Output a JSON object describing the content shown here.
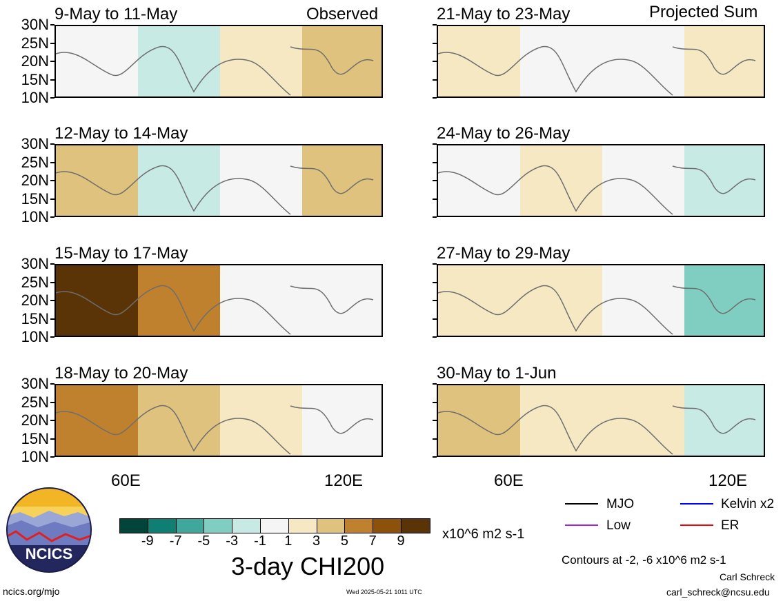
{
  "header": {
    "observed_label": "Observed",
    "projected_label": "Projected Sum"
  },
  "panels": [
    {
      "title": "9-May to 11-May",
      "field": [
        -1,
        -3,
        1,
        3
      ]
    },
    {
      "title": "12-May to 14-May",
      "field": [
        3,
        -3,
        -1,
        3
      ]
    },
    {
      "title": "15-May to 17-May",
      "field": [
        9,
        5,
        -1,
        -1
      ]
    },
    {
      "title": "18-May to 20-May",
      "field": [
        5,
        3,
        1,
        -1
      ]
    },
    {
      "title": "21-May to 23-May",
      "field": [
        1,
        -1,
        -1,
        1
      ]
    },
    {
      "title": "24-May to 26-May",
      "field": [
        -1,
        1,
        -1,
        -3
      ]
    },
    {
      "title": "27-May to 29-May",
      "field": [
        1,
        1,
        -1,
        -5
      ]
    },
    {
      "title": "30-May to 1-Jun",
      "field": [
        3,
        1,
        1,
        -3
      ]
    }
  ],
  "lat_labels": [
    "30N",
    "25N",
    "20N",
    "15N",
    "10N"
  ],
  "lon_labels": [
    "60E",
    "120E"
  ],
  "colorbar": {
    "colors": [
      "#01453a",
      "#0f7f74",
      "#3fa79c",
      "#80cdc1",
      "#c7eae5",
      "#f5f5f5",
      "#f6e8c3",
      "#dfc27d",
      "#bf812d",
      "#8c510a",
      "#5a3307"
    ],
    "labels": [
      "-9",
      "-7",
      "-5",
      "-3",
      "-1",
      "1",
      "3",
      "5",
      "7",
      "9"
    ],
    "units": "x10^6 m2 s-1",
    "title": "3-day CHI200"
  },
  "legend": {
    "items": [
      {
        "label": "MJO",
        "color": "#000000"
      },
      {
        "label": "Kelvin x2",
        "color": "#0000ff"
      },
      {
        "label": "Low",
        "color": "#a020f0"
      },
      {
        "label": "ER",
        "color": "#ff0000"
      }
    ],
    "note": "Contours at -2, -6 x10^6 m2 s-1"
  },
  "logo": {
    "text": "NCICS"
  },
  "footer": {
    "left": "ncics.org/mjo",
    "center": "Wed 2025-05-21 1011 UTC",
    "author": "Carl Schreck",
    "email": "carl_schreck@ncsu.edu"
  }
}
